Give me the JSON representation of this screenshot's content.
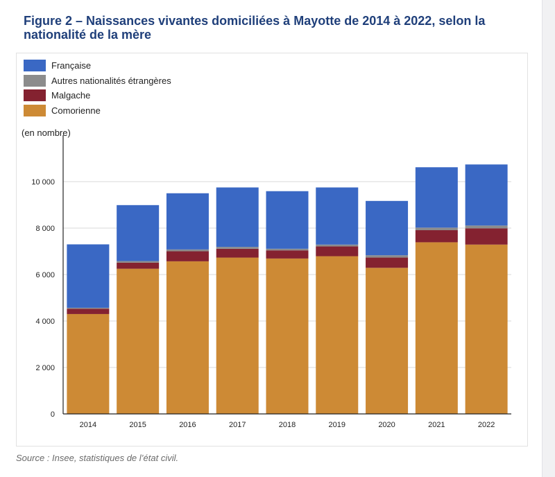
{
  "title": "Figure 2 – Naissances vivantes domiciliées à Mayotte de 2014 à 2022, selon la nationalité de la mère",
  "source": "Source : Insee, statistiques de l’état civil.",
  "chart_data": {
    "type": "bar",
    "stacked": true,
    "unit_label": "(en nombre)",
    "categories": [
      "2014",
      "2015",
      "2016",
      "2017",
      "2018",
      "2019",
      "2020",
      "2021",
      "2022"
    ],
    "ylim": [
      0,
      12000
    ],
    "yticks": [
      0,
      2000,
      4000,
      6000,
      8000,
      10000
    ],
    "ytick_labels": [
      "0",
      "2 000",
      "4 000",
      "6 000",
      "8 000",
      "10 000"
    ],
    "grid": true,
    "legend_position": "top-left",
    "legend_order": [
      "Française",
      "Autres nationalités étrangères",
      "Malgache",
      "Comorienne"
    ],
    "series": [
      {
        "name": "Comorienne",
        "color": "#cd8a35",
        "values": [
          4300,
          6250,
          6570,
          6730,
          6690,
          6790,
          6290,
          7390,
          7290
        ]
      },
      {
        "name": "Malgache",
        "color": "#842230",
        "values": [
          230,
          260,
          430,
          380,
          350,
          420,
          440,
          520,
          700
        ]
      },
      {
        "name": "Autres nationalités étrangères",
        "color": "#8c8c8c",
        "values": [
          40,
          70,
          80,
          80,
          70,
          80,
          100,
          110,
          120
        ]
      },
      {
        "name": "Française",
        "color": "#3a68c4",
        "values": [
          2730,
          2410,
          2420,
          2560,
          2480,
          2460,
          2340,
          2600,
          2630
        ]
      }
    ]
  }
}
